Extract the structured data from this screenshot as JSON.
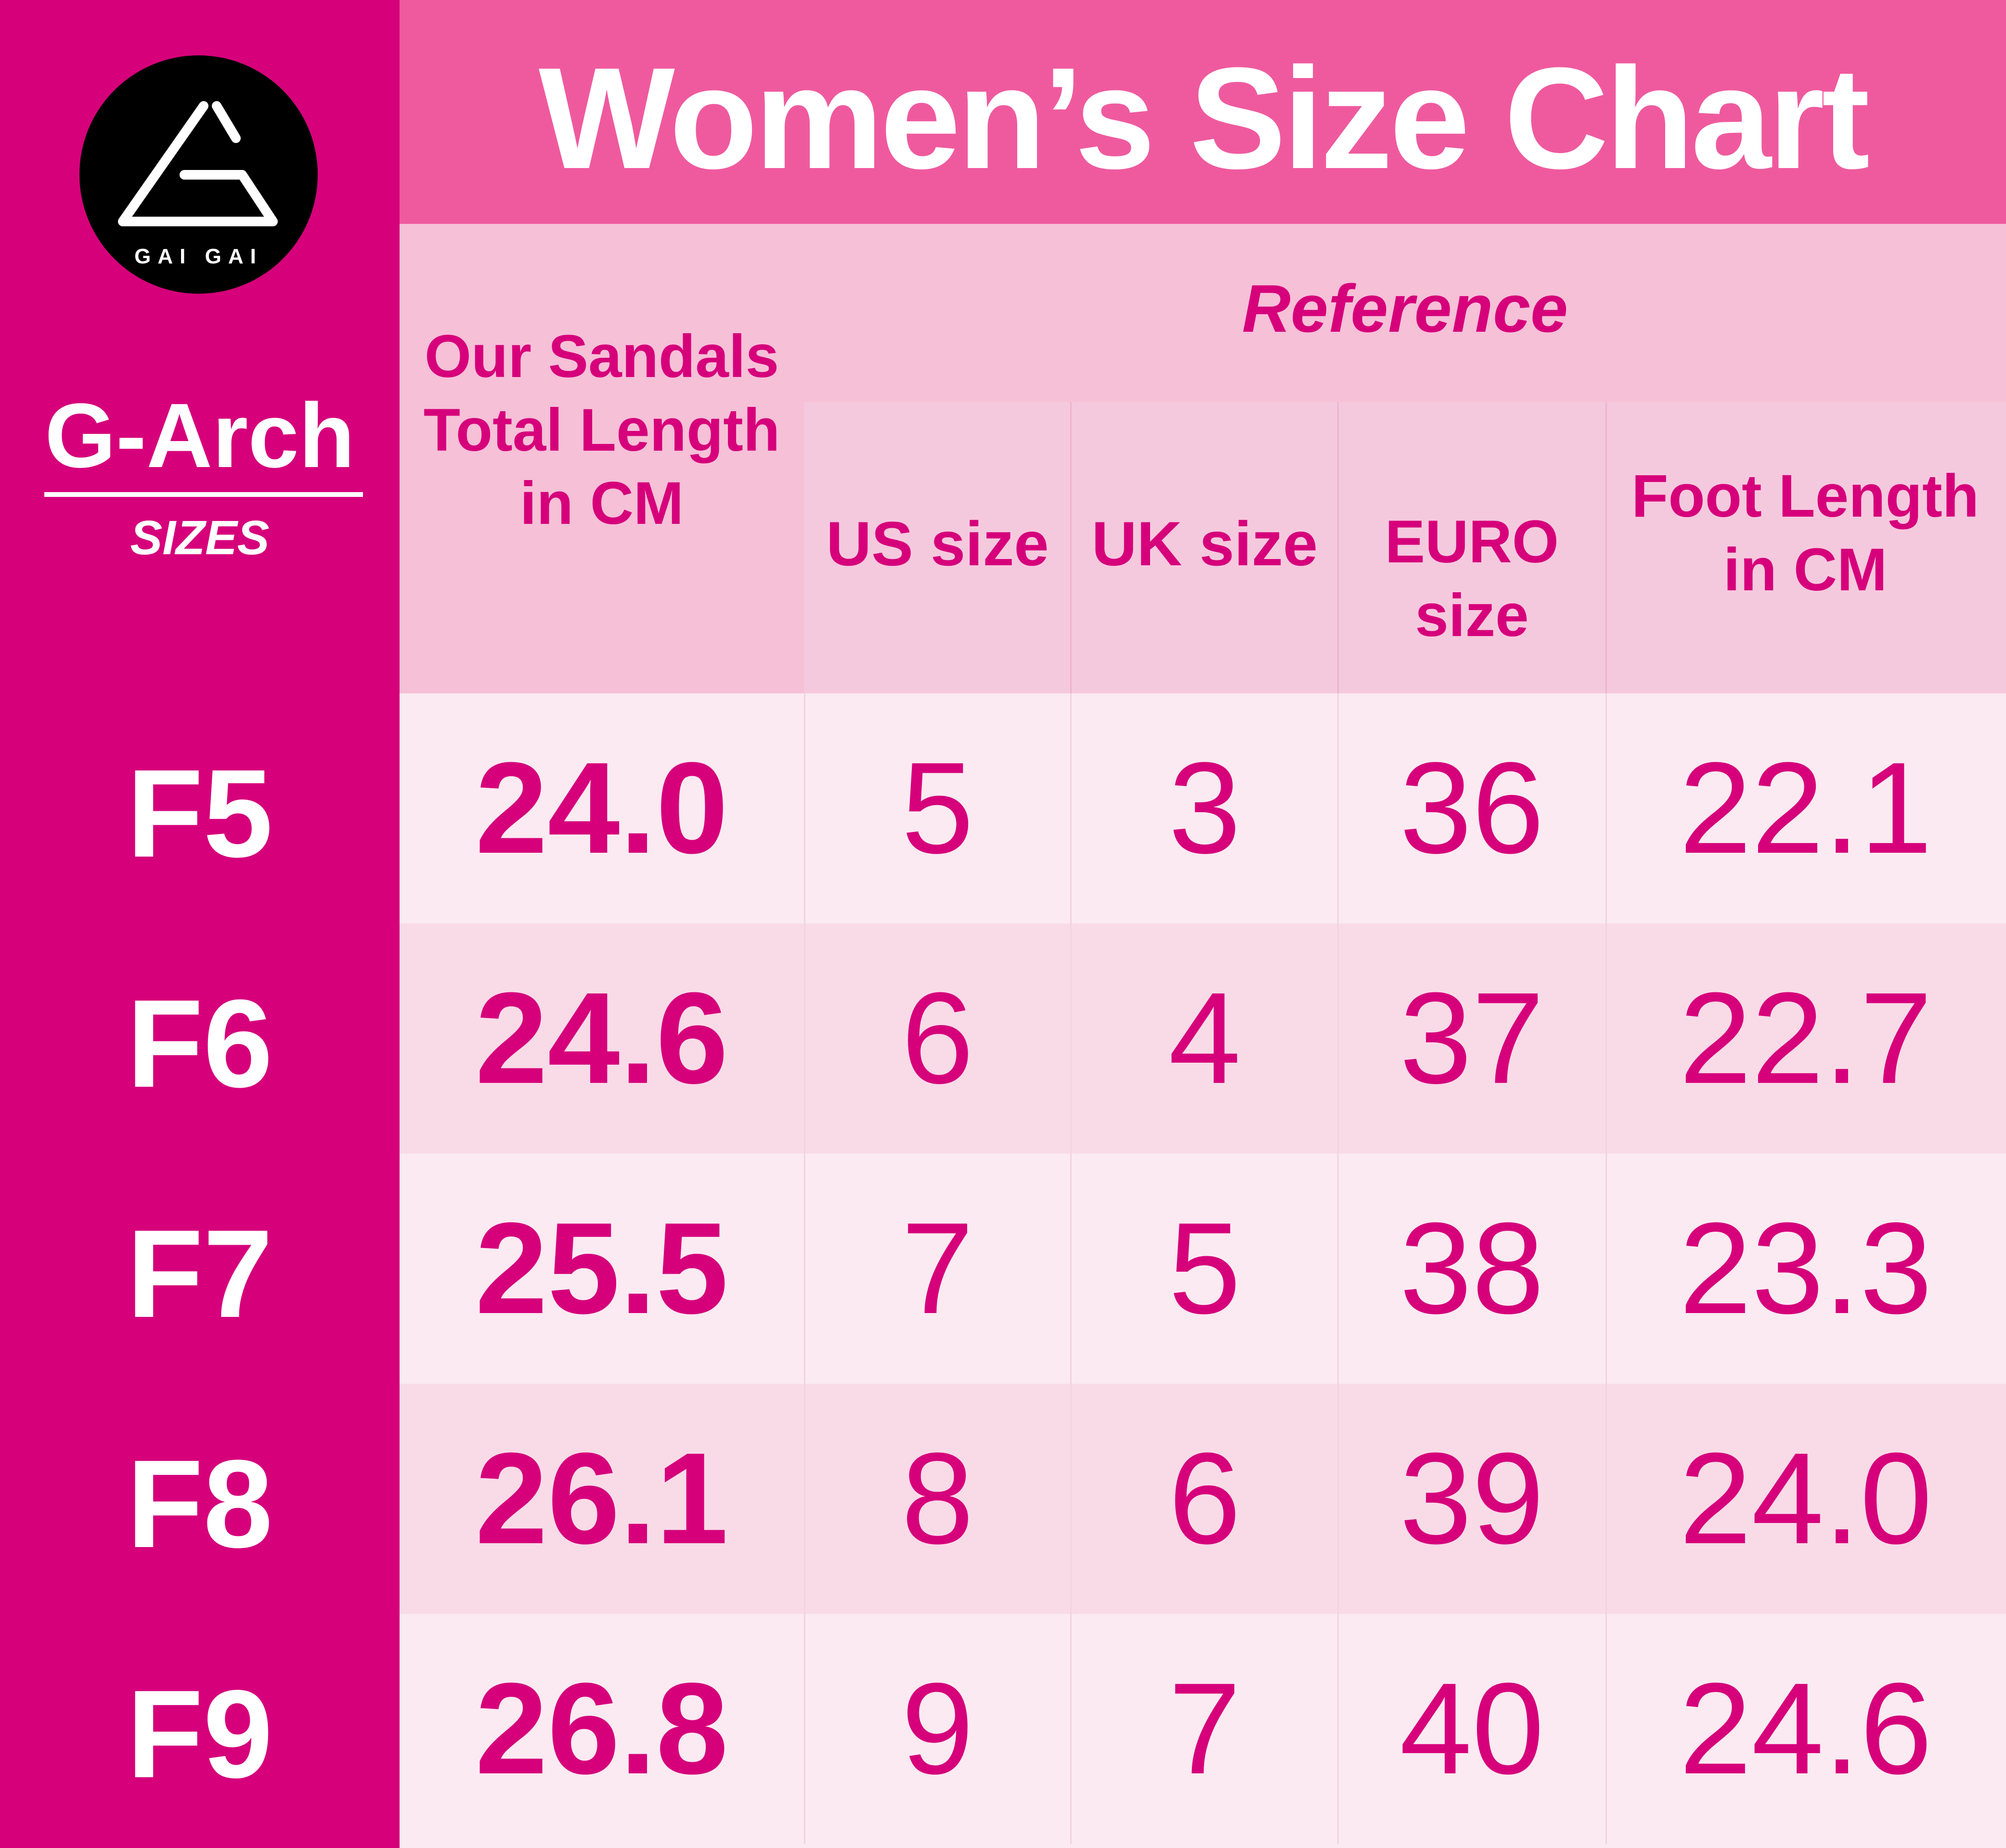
{
  "brand": {
    "logo_text": "GAI GAI",
    "logo_icon": "triangle-g-logo-icon"
  },
  "sidebar": {
    "title": "G-Arch",
    "subtitle": "SIZES"
  },
  "title": "Women’s Size Chart",
  "headers": {
    "sandal_length": "Our Sandals Total Length in CM",
    "reference": "Reference",
    "us": "US size",
    "uk": "UK size",
    "euro": "EURO size",
    "foot_length": "Foot Length in CM"
  },
  "rows": [
    {
      "size": "F5",
      "sandal_length": "24.0",
      "us": "5",
      "uk": "3",
      "euro": "36",
      "foot_length": "22.1"
    },
    {
      "size": "F6",
      "sandal_length": "24.6",
      "us": "6",
      "uk": "4",
      "euro": "37",
      "foot_length": "22.7"
    },
    {
      "size": "F7",
      "sandal_length": "25.5",
      "us": "7",
      "uk": "5",
      "euro": "38",
      "foot_length": "23.3"
    },
    {
      "size": "F8",
      "sandal_length": "26.1",
      "us": "8",
      "uk": "6",
      "euro": "39",
      "foot_length": "24.0"
    },
    {
      "size": "F9",
      "sandal_length": "26.8",
      "us": "9",
      "uk": "7",
      "euro": "40",
      "foot_length": "24.6"
    }
  ],
  "colors": {
    "magenta": "#d6007b",
    "pink": "#ef5a9e",
    "header_bg": "#f6c0d7",
    "row_light": "#fbeaf1",
    "row_dark": "#f9dbe7"
  }
}
